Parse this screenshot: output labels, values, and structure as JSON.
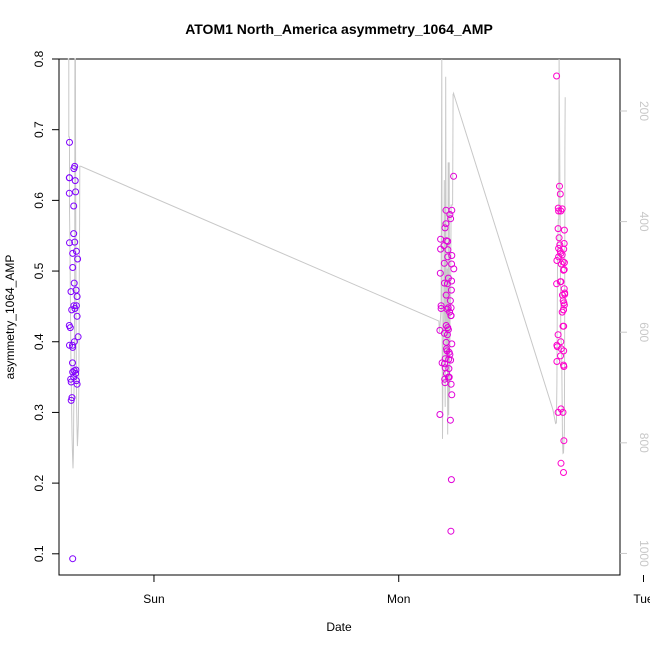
{
  "chart_data": {
    "type": "scatter",
    "title": "ATOM1 North_America asymmetry_1064_AMP",
    "xlabel": "Date",
    "ylabel": "asymmetry_1064_AMP",
    "x_ticks": [
      "Sun",
      "Mon",
      "Tue"
    ],
    "x_tick_days": [
      1,
      2,
      3
    ],
    "xlim_days": [
      0.612,
      2.904
    ],
    "ylim": [
      0.07,
      0.8
    ],
    "y_ticks": [
      0.1,
      0.2,
      0.3,
      0.4,
      0.5,
      0.6,
      0.7,
      0.8
    ],
    "right_axis": {
      "ticks": [
        200,
        400,
        600,
        800,
        1000
      ],
      "range": [
        1039,
        106
      ],
      "inverted": true
    },
    "grid": false,
    "colors": {
      "scatter_start": "#7f00ff",
      "scatter_end": "#ff00cc",
      "line": "#c8c8c8"
    },
    "series": [
      {
        "type": "scatter",
        "points": [
          [
            0.655,
            0.682
          ],
          [
            0.654,
            0.632
          ],
          [
            0.655,
            0.632
          ],
          [
            0.654,
            0.61
          ],
          [
            0.655,
            0.54
          ],
          [
            0.661,
            0.471
          ],
          [
            0.654,
            0.423
          ],
          [
            0.658,
            0.42
          ],
          [
            0.655,
            0.395
          ],
          [
            0.66,
            0.347
          ],
          [
            0.662,
            0.343
          ],
          [
            0.662,
            0.317
          ],
          [
            0.665,
            0.321
          ],
          [
            0.664,
            0.445
          ],
          [
            0.668,
            0.525
          ],
          [
            0.668,
            0.505
          ],
          [
            0.667,
            0.395
          ],
          [
            0.668,
            0.392
          ],
          [
            0.667,
            0.37
          ],
          [
            0.668,
            0.357
          ],
          [
            0.668,
            0.093
          ],
          [
            0.672,
            0.553
          ],
          [
            0.674,
            0.483
          ],
          [
            0.672,
            0.592
          ],
          [
            0.673,
            0.645
          ],
          [
            0.676,
            0.648
          ],
          [
            0.678,
            0.628
          ],
          [
            0.676,
            0.541
          ],
          [
            0.673,
            0.451
          ],
          [
            0.677,
            0.447
          ],
          [
            0.675,
            0.4
          ],
          [
            0.674,
            0.359
          ],
          [
            0.672,
            0.35
          ],
          [
            0.68,
            0.612
          ],
          [
            0.683,
            0.528
          ],
          [
            0.682,
            0.473
          ],
          [
            0.683,
            0.451
          ],
          [
            0.686,
            0.464
          ],
          [
            0.681,
            0.36
          ],
          [
            0.68,
            0.355
          ],
          [
            0.683,
            0.345
          ],
          [
            0.686,
            0.34
          ],
          [
            0.686,
            0.436
          ],
          [
            0.688,
            0.517
          ],
          [
            0.69,
            0.407
          ],
          [
            2.171,
            0.545
          ],
          [
            2.171,
            0.531
          ],
          [
            2.17,
            0.497
          ],
          [
            2.173,
            0.451
          ],
          [
            2.173,
            0.447
          ],
          [
            2.168,
            0.416
          ],
          [
            2.168,
            0.297
          ],
          [
            2.177,
            0.37
          ],
          [
            2.185,
            0.536
          ],
          [
            2.186,
            0.511
          ],
          [
            2.189,
            0.561
          ],
          [
            2.187,
            0.483
          ],
          [
            2.186,
            0.412
          ],
          [
            2.19,
            0.376
          ],
          [
            2.187,
            0.369
          ],
          [
            2.19,
            0.363
          ],
          [
            2.188,
            0.347
          ],
          [
            2.189,
            0.342
          ],
          [
            2.193,
            0.586
          ],
          [
            2.195,
            0.543
          ],
          [
            2.193,
            0.567
          ],
          [
            2.194,
            0.466
          ],
          [
            2.194,
            0.423
          ],
          [
            2.195,
            0.39
          ],
          [
            2.194,
            0.399
          ],
          [
            2.197,
            0.387
          ],
          [
            2.195,
            0.355
          ],
          [
            2.2,
            0.542
          ],
          [
            2.201,
            0.53
          ],
          [
            2.2,
            0.52
          ],
          [
            2.203,
            0.49
          ],
          [
            2.199,
            0.482
          ],
          [
            2.198,
            0.446
          ],
          [
            2.202,
            0.448
          ],
          [
            2.2,
            0.42
          ],
          [
            2.203,
            0.417
          ],
          [
            2.199,
            0.41
          ],
          [
            2.204,
            0.375
          ],
          [
            2.206,
            0.385
          ],
          [
            2.205,
            0.362
          ],
          [
            2.206,
            0.35
          ],
          [
            2.203,
            0.35
          ],
          [
            2.208,
            0.442
          ],
          [
            2.209,
            0.58
          ],
          [
            2.212,
            0.574
          ],
          [
            2.211,
            0.458
          ],
          [
            2.214,
            0.448
          ],
          [
            2.213,
            0.437
          ],
          [
            2.209,
            0.382
          ],
          [
            2.212,
            0.374
          ],
          [
            2.214,
            0.34
          ],
          [
            2.211,
            0.289
          ],
          [
            2.216,
            0.486
          ],
          [
            2.217,
            0.586
          ],
          [
            2.217,
            0.522
          ],
          [
            2.216,
            0.51
          ],
          [
            2.215,
            0.473
          ],
          [
            2.214,
            0.437
          ],
          [
            2.217,
            0.397
          ],
          [
            2.217,
            0.325
          ],
          [
            2.215,
            0.205
          ],
          [
            2.213,
            0.132
          ],
          [
            2.224,
            0.634
          ],
          [
            2.225,
            0.503
          ],
          [
            2.645,
            0.776
          ],
          [
            2.646,
            0.515
          ],
          [
            2.645,
            0.482
          ],
          [
            2.646,
            0.395
          ],
          [
            2.648,
            0.393
          ],
          [
            2.646,
            0.372
          ],
          [
            2.652,
            0.589
          ],
          [
            2.653,
            0.585
          ],
          [
            2.651,
            0.56
          ],
          [
            2.655,
            0.547
          ],
          [
            2.653,
            0.52
          ],
          [
            2.653,
            0.532
          ],
          [
            2.651,
            0.41
          ],
          [
            2.651,
            0.3
          ],
          [
            2.657,
            0.62
          ],
          [
            2.66,
            0.609
          ],
          [
            2.662,
            0.585
          ],
          [
            2.658,
            0.537
          ],
          [
            2.662,
            0.525
          ],
          [
            2.66,
            0.528
          ],
          [
            2.664,
            0.51
          ],
          [
            2.663,
            0.485
          ],
          [
            2.66,
            0.485
          ],
          [
            2.662,
            0.4
          ],
          [
            2.664,
            0.39
          ],
          [
            2.661,
            0.38
          ],
          [
            2.663,
            0.228
          ],
          [
            2.663,
            0.305
          ],
          [
            2.668,
            0.588
          ],
          [
            2.668,
            0.523
          ],
          [
            2.671,
            0.513
          ],
          [
            2.673,
            0.501
          ],
          [
            2.669,
            0.466
          ],
          [
            2.672,
            0.458
          ],
          [
            2.673,
            0.445
          ],
          [
            2.673,
            0.445
          ],
          [
            2.668,
            0.442
          ],
          [
            2.671,
            0.422
          ],
          [
            2.674,
            0.422
          ],
          [
            2.671,
            0.3
          ],
          [
            2.677,
            0.558
          ],
          [
            2.676,
            0.539
          ],
          [
            2.674,
            0.531
          ],
          [
            2.677,
            0.512
          ],
          [
            2.676,
            0.502
          ],
          [
            2.676,
            0.475
          ],
          [
            2.678,
            0.469
          ],
          [
            2.678,
            0.467
          ],
          [
            2.675,
            0.455
          ],
          [
            2.677,
            0.452
          ],
          [
            2.674,
            0.387
          ],
          [
            2.673,
            0.367
          ],
          [
            2.675,
            0.365
          ],
          [
            2.675,
            0.26
          ],
          [
            2.673,
            0.215
          ]
        ]
      },
      {
        "type": "line",
        "axis": "right",
        "points": [
          [
            0.648,
            106
          ],
          [
            0.652,
            106
          ],
          [
            0.652,
            247
          ],
          [
            0.655,
            247
          ],
          [
            0.655,
            380
          ],
          [
            0.656,
            420
          ],
          [
            0.658,
            520
          ],
          [
            0.66,
            600
          ],
          [
            0.661,
            665
          ],
          [
            0.663,
            723
          ],
          [
            0.665,
            785
          ],
          [
            0.667,
            820
          ],
          [
            0.669,
            846
          ],
          [
            0.671,
            820
          ],
          [
            0.672,
            750
          ],
          [
            0.674,
            680
          ],
          [
            0.676,
            520
          ],
          [
            0.677,
            106
          ],
          [
            0.679,
            106
          ],
          [
            0.68,
            300
          ],
          [
            0.682,
            600
          ],
          [
            0.684,
            733
          ],
          [
            0.686,
            783
          ],
          [
            0.687,
            806
          ],
          [
            0.689,
            790
          ],
          [
            0.691,
            767
          ],
          [
            0.693,
            706
          ],
          [
            0.694,
            600
          ],
          [
            0.695,
            500
          ],
          [
            0.696,
            400
          ],
          [
            0.697,
            300
          ],
          [
            0.701,
            300
          ],
          [
            2.164,
            580
          ],
          [
            2.166,
            600
          ],
          [
            2.168,
            592
          ],
          [
            2.173,
            555
          ],
          [
            2.176,
            106
          ],
          [
            2.177,
            555
          ],
          [
            2.179,
            793
          ],
          [
            2.181,
            650
          ],
          [
            2.184,
            555
          ],
          [
            2.186,
            325
          ],
          [
            2.188,
            555
          ],
          [
            2.19,
            735
          ],
          [
            2.192,
            138
          ],
          [
            2.194,
            555
          ],
          [
            2.196,
            650
          ],
          [
            2.198,
            485
          ],
          [
            2.2,
            785
          ],
          [
            2.202,
            293
          ],
          [
            2.204,
            750
          ],
          [
            2.206,
            293
          ],
          [
            2.208,
            710
          ],
          [
            2.21,
            555
          ],
          [
            2.212,
            550
          ],
          [
            2.214,
            370
          ],
          [
            2.216,
            370
          ],
          [
            2.22,
            370
          ],
          [
            2.222,
            170
          ],
          [
            2.223,
            170
          ],
          [
            2.224,
            168
          ],
          [
            2.226,
            171
          ],
          [
            2.63,
            740
          ],
          [
            2.641,
            765
          ],
          [
            2.644,
            764
          ],
          [
            2.646,
            693
          ],
          [
            2.649,
            448
          ],
          [
            2.652,
            396
          ],
          [
            2.654,
            396
          ],
          [
            2.655,
            106
          ],
          [
            2.658,
            300
          ],
          [
            2.662,
            600
          ],
          [
            2.666,
            640
          ],
          [
            2.669,
            797
          ],
          [
            2.671,
            819
          ],
          [
            2.673,
            818
          ],
          [
            2.675,
            799
          ],
          [
            2.677,
            780
          ],
          [
            2.678,
            560
          ],
          [
            2.679,
            270
          ],
          [
            2.68,
            175
          ]
        ]
      }
    ]
  }
}
